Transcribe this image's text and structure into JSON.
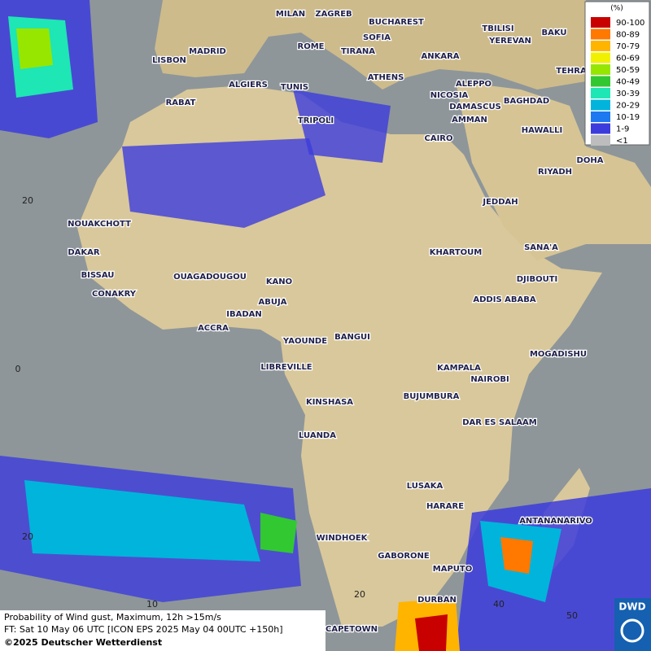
{
  "legend": {
    "title": "(%)",
    "items": [
      {
        "label": "90-100",
        "color": "#c80000"
      },
      {
        "label": "80-89",
        "color": "#ff7800"
      },
      {
        "label": "70-79",
        "color": "#ffb400"
      },
      {
        "label": "60-69",
        "color": "#f0f000"
      },
      {
        "label": "50-59",
        "color": "#96e600"
      },
      {
        "label": "40-49",
        "color": "#32c832"
      },
      {
        "label": "30-39",
        "color": "#1ee6b4"
      },
      {
        "label": "20-29",
        "color": "#00b4dc"
      },
      {
        "label": "10-19",
        "color": "#1e78f0"
      },
      {
        "label": "1-9",
        "color": "#3c3cdc"
      },
      {
        "label": "<1",
        "color": "#bdbdbd"
      }
    ]
  },
  "cities": [
    "MILAN",
    "ZAGREB",
    "BUCHAREST",
    "TBILISI",
    "BAKU",
    "MADRID",
    "ROME",
    "SOFIA",
    "TIRANA",
    "ANKARA",
    "YEREVAN",
    "LISBON",
    "ATHENS",
    "TEHRA",
    "ALGIERS",
    "TUNIS",
    "ALEPPO",
    "RABAT",
    "NICOSIA",
    "DAMASCUS",
    "BAGHDAD",
    "AMMAN",
    "TRIPOLI",
    "HAWALLI",
    "CAIRO",
    "DOHA",
    "RIYADH",
    "JEDDAH",
    "NOUAKCHOTT",
    "SANA'A",
    "DAKAR",
    "KHARTOUM",
    "BISSAU",
    "OUAGADOUGOU",
    "KANO",
    "DJIBOUTI",
    "CONAKRY",
    "ABUJA",
    "ADDIS ABABA",
    "IBADAN",
    "ACCRA",
    "YAOUNDE",
    "BANGUI",
    "MOGADISHU",
    "LIBREVILLE",
    "KAMPALA",
    "NAIROBI",
    "KINSHASA",
    "BUJUMBURA",
    "DAR ES SALAAM",
    "LUANDA",
    "LUSAKA",
    "HARARE",
    "ANTANANARIVO",
    "WINDHOEK",
    "GABORONE",
    "MAPUTO",
    "DURBAN",
    "CAPETOWN"
  ],
  "grid_labels": {
    "lat": [
      "20",
      "0",
      "20"
    ],
    "lon": [
      "10",
      "20",
      "40",
      "50"
    ]
  },
  "footer": {
    "line1": "Probability of Wind gust, Maximum, 12h >15m/s",
    "line2": "FT: Sat 10 May 06 UTC [ICON EPS 2025 May 04 00UTC +150h]",
    "line3": "©2025 Deutscher Wetterdienst"
  },
  "logo": "DWD"
}
